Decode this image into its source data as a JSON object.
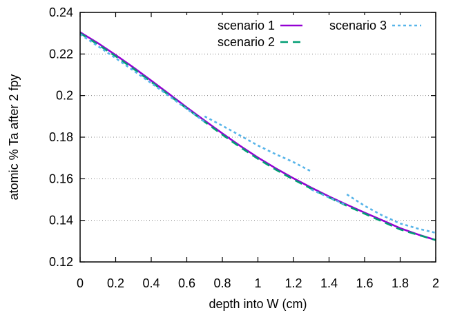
{
  "chart_data": {
    "type": "line",
    "title": "",
    "xlabel": "depth into W (cm)",
    "ylabel": "atomic % Ta after 2 fpy",
    "xlim": [
      0,
      2
    ],
    "ylim": [
      0.12,
      0.24
    ],
    "x_ticks": [
      "0",
      "0.2",
      "0.4",
      "0.6",
      "0.8",
      "1",
      "1.2",
      "1.4",
      "1.6",
      "1.8",
      "2"
    ],
    "y_ticks": [
      "0.12",
      "0.14",
      "0.16",
      "0.18",
      "0.2",
      "0.22",
      "0.24"
    ],
    "grid": "horizontal dotted",
    "legend_position": "top-right",
    "series": [
      {
        "name": "scenario 1",
        "color": "#9400d3",
        "style": "solid",
        "segments": [
          [
            [
              0,
              0.2305
            ],
            [
              0.1,
              0.2252
            ],
            [
              0.2,
              0.2195
            ],
            [
              0.3,
              0.2135
            ],
            [
              0.4,
              0.2072
            ],
            [
              0.5,
              0.2008
            ],
            [
              0.6,
              0.1943
            ],
            [
              0.7,
              0.188
            ],
            [
              0.8,
              0.1818
            ],
            [
              0.9,
              0.1758
            ],
            [
              1.0,
              0.1702
            ],
            [
              1.1,
              0.165
            ],
            [
              1.2,
              0.1602
            ],
            [
              1.3,
              0.1557
            ],
            [
              1.4,
              0.1515
            ],
            [
              1.5,
              0.1475
            ],
            [
              1.6,
              0.1437
            ],
            [
              1.7,
              0.14
            ],
            [
              1.8,
              0.1362
            ],
            [
              1.9,
              0.1332
            ],
            [
              2.0,
              0.1305
            ]
          ]
        ]
      },
      {
        "name": "scenario 2",
        "color": "#009e73",
        "style": "dashed",
        "segments": [
          [
            [
              0,
              0.23
            ],
            [
              0.1,
              0.2246
            ],
            [
              0.2,
              0.2189
            ],
            [
              0.3,
              0.2129
            ],
            [
              0.4,
              0.2066
            ],
            [
              0.5,
              0.2002
            ],
            [
              0.6,
              0.1938
            ],
            [
              0.7,
              0.1874
            ],
            [
              0.8,
              0.1812
            ],
            [
              0.9,
              0.1752
            ],
            [
              1.0,
              0.1696
            ],
            [
              1.1,
              0.1644
            ],
            [
              1.2,
              0.1596
            ],
            [
              1.3,
              0.1552
            ],
            [
              1.4,
              0.151
            ],
            [
              1.5,
              0.147
            ],
            [
              1.6,
              0.1432
            ],
            [
              1.7,
              0.1394
            ],
            [
              1.8,
              0.1356
            ],
            [
              1.9,
              0.133
            ],
            [
              2.0,
              0.1305
            ]
          ]
        ]
      },
      {
        "name": "scenario 3",
        "color": "#56b4e9",
        "style": "dotted",
        "segments": [
          [
            [
              0,
              0.2295
            ],
            [
              0.1,
              0.2238
            ],
            [
              0.2,
              0.218
            ],
            [
              0.3,
              0.212
            ],
            [
              0.4,
              0.206
            ],
            [
              0.5,
              0.1998
            ],
            [
              0.6,
              0.1936
            ],
            [
              0.7,
              0.1874
            ]
          ],
          [
            [
              0.7,
              0.19
            ],
            [
              0.8,
              0.1855
            ],
            [
              0.9,
              0.1808
            ],
            [
              1.0,
              0.176
            ],
            [
              1.1,
              0.1718
            ],
            [
              1.2,
              0.168
            ],
            [
              1.3,
              0.1635
            ]
          ],
          [
            [
              1.3,
              0.1548
            ],
            [
              1.4,
              0.151
            ],
            [
              1.5,
              0.1472
            ]
          ],
          [
            [
              1.5,
              0.1525
            ],
            [
              1.6,
              0.147
            ],
            [
              1.7,
              0.1423
            ],
            [
              1.8,
              0.1385
            ],
            [
              1.9,
              0.136
            ],
            [
              2.0,
              0.134
            ]
          ]
        ]
      }
    ]
  }
}
